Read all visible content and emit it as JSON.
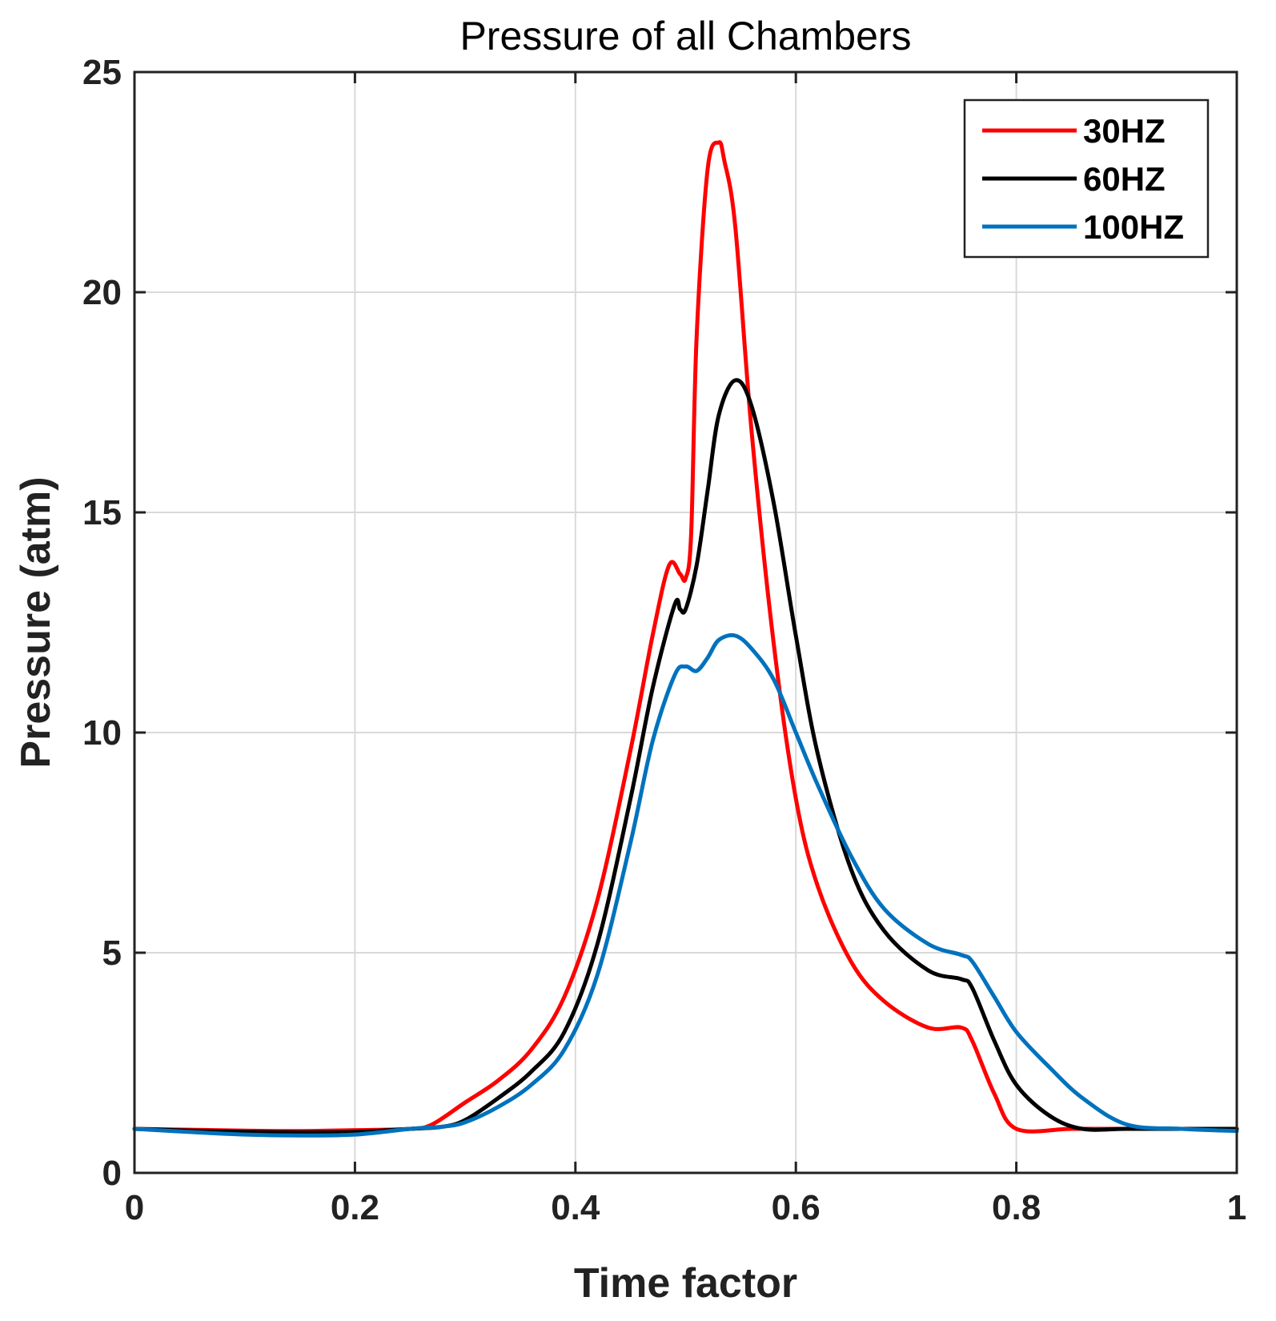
{
  "chart_data": {
    "type": "line",
    "title": "Pressure of all Chambers",
    "xlabel": "Time factor",
    "ylabel": "Pressure (atm)",
    "xlim": [
      0,
      1
    ],
    "ylim": [
      0,
      25
    ],
    "xticks": [
      0,
      0.2,
      0.4,
      0.6,
      0.8,
      1
    ],
    "xtick_labels": [
      "0",
      "0.2",
      "0.4",
      "0.6",
      "0.8",
      "1"
    ],
    "yticks": [
      0,
      5,
      10,
      15,
      20,
      25
    ],
    "ytick_labels": [
      "0",
      "5",
      "10",
      "15",
      "20",
      "25"
    ],
    "grid": true,
    "legend_position": "top-right",
    "series": [
      {
        "name": "30HZ",
        "color": "#ff0000",
        "x": [
          0,
          0.05,
          0.1,
          0.15,
          0.2,
          0.25,
          0.27,
          0.3,
          0.33,
          0.36,
          0.39,
          0.42,
          0.45,
          0.47,
          0.485,
          0.495,
          0.5,
          0.505,
          0.51,
          0.52,
          0.53,
          0.535,
          0.545,
          0.56,
          0.58,
          0.6,
          0.62,
          0.65,
          0.68,
          0.72,
          0.75,
          0.76,
          0.78,
          0.8,
          0.85,
          0.9,
          0.95,
          1.0
        ],
        "y": [
          1.0,
          0.98,
          0.96,
          0.95,
          0.97,
          1.0,
          1.1,
          1.6,
          2.1,
          2.8,
          4.0,
          6.2,
          9.6,
          12.2,
          13.8,
          13.6,
          13.5,
          14.5,
          19.0,
          22.8,
          23.4,
          23.0,
          21.5,
          16.8,
          12.0,
          8.5,
          6.5,
          4.8,
          3.9,
          3.3,
          3.3,
          3.0,
          1.8,
          1.0,
          1.0,
          1.0,
          1.0,
          1.0
        ]
      },
      {
        "name": "60HZ",
        "color": "#000000",
        "x": [
          0,
          0.05,
          0.1,
          0.15,
          0.2,
          0.25,
          0.28,
          0.3,
          0.33,
          0.36,
          0.39,
          0.42,
          0.45,
          0.47,
          0.49,
          0.495,
          0.5,
          0.51,
          0.52,
          0.53,
          0.545,
          0.56,
          0.58,
          0.6,
          0.62,
          0.65,
          0.68,
          0.72,
          0.75,
          0.76,
          0.78,
          0.8,
          0.83,
          0.86,
          0.9,
          0.95,
          1.0
        ],
        "y": [
          1.0,
          0.96,
          0.93,
          0.92,
          0.93,
          1.0,
          1.05,
          1.2,
          1.7,
          2.3,
          3.2,
          5.2,
          8.5,
          11.0,
          12.9,
          12.8,
          12.8,
          13.8,
          15.5,
          17.2,
          18.0,
          17.4,
          15.2,
          12.2,
          9.5,
          6.9,
          5.5,
          4.6,
          4.4,
          4.2,
          3.0,
          2.0,
          1.3,
          1.0,
          1.0,
          1.0,
          1.0
        ]
      },
      {
        "name": "100HZ",
        "color": "#0072bd",
        "x": [
          0,
          0.05,
          0.1,
          0.15,
          0.2,
          0.25,
          0.28,
          0.3,
          0.33,
          0.36,
          0.39,
          0.42,
          0.45,
          0.47,
          0.49,
          0.5,
          0.51,
          0.52,
          0.53,
          0.545,
          0.56,
          0.58,
          0.6,
          0.62,
          0.65,
          0.68,
          0.72,
          0.75,
          0.76,
          0.78,
          0.8,
          0.83,
          0.86,
          0.9,
          0.95,
          1.0
        ],
        "y": [
          1.0,
          0.93,
          0.87,
          0.85,
          0.87,
          1.0,
          1.05,
          1.15,
          1.5,
          2.0,
          2.8,
          4.5,
          7.5,
          9.8,
          11.3,
          11.5,
          11.4,
          11.7,
          12.1,
          12.2,
          11.9,
          11.2,
          10.0,
          8.8,
          7.2,
          6.0,
          5.2,
          4.95,
          4.8,
          4.0,
          3.2,
          2.4,
          1.7,
          1.1,
          1.0,
          0.95
        ]
      }
    ]
  }
}
